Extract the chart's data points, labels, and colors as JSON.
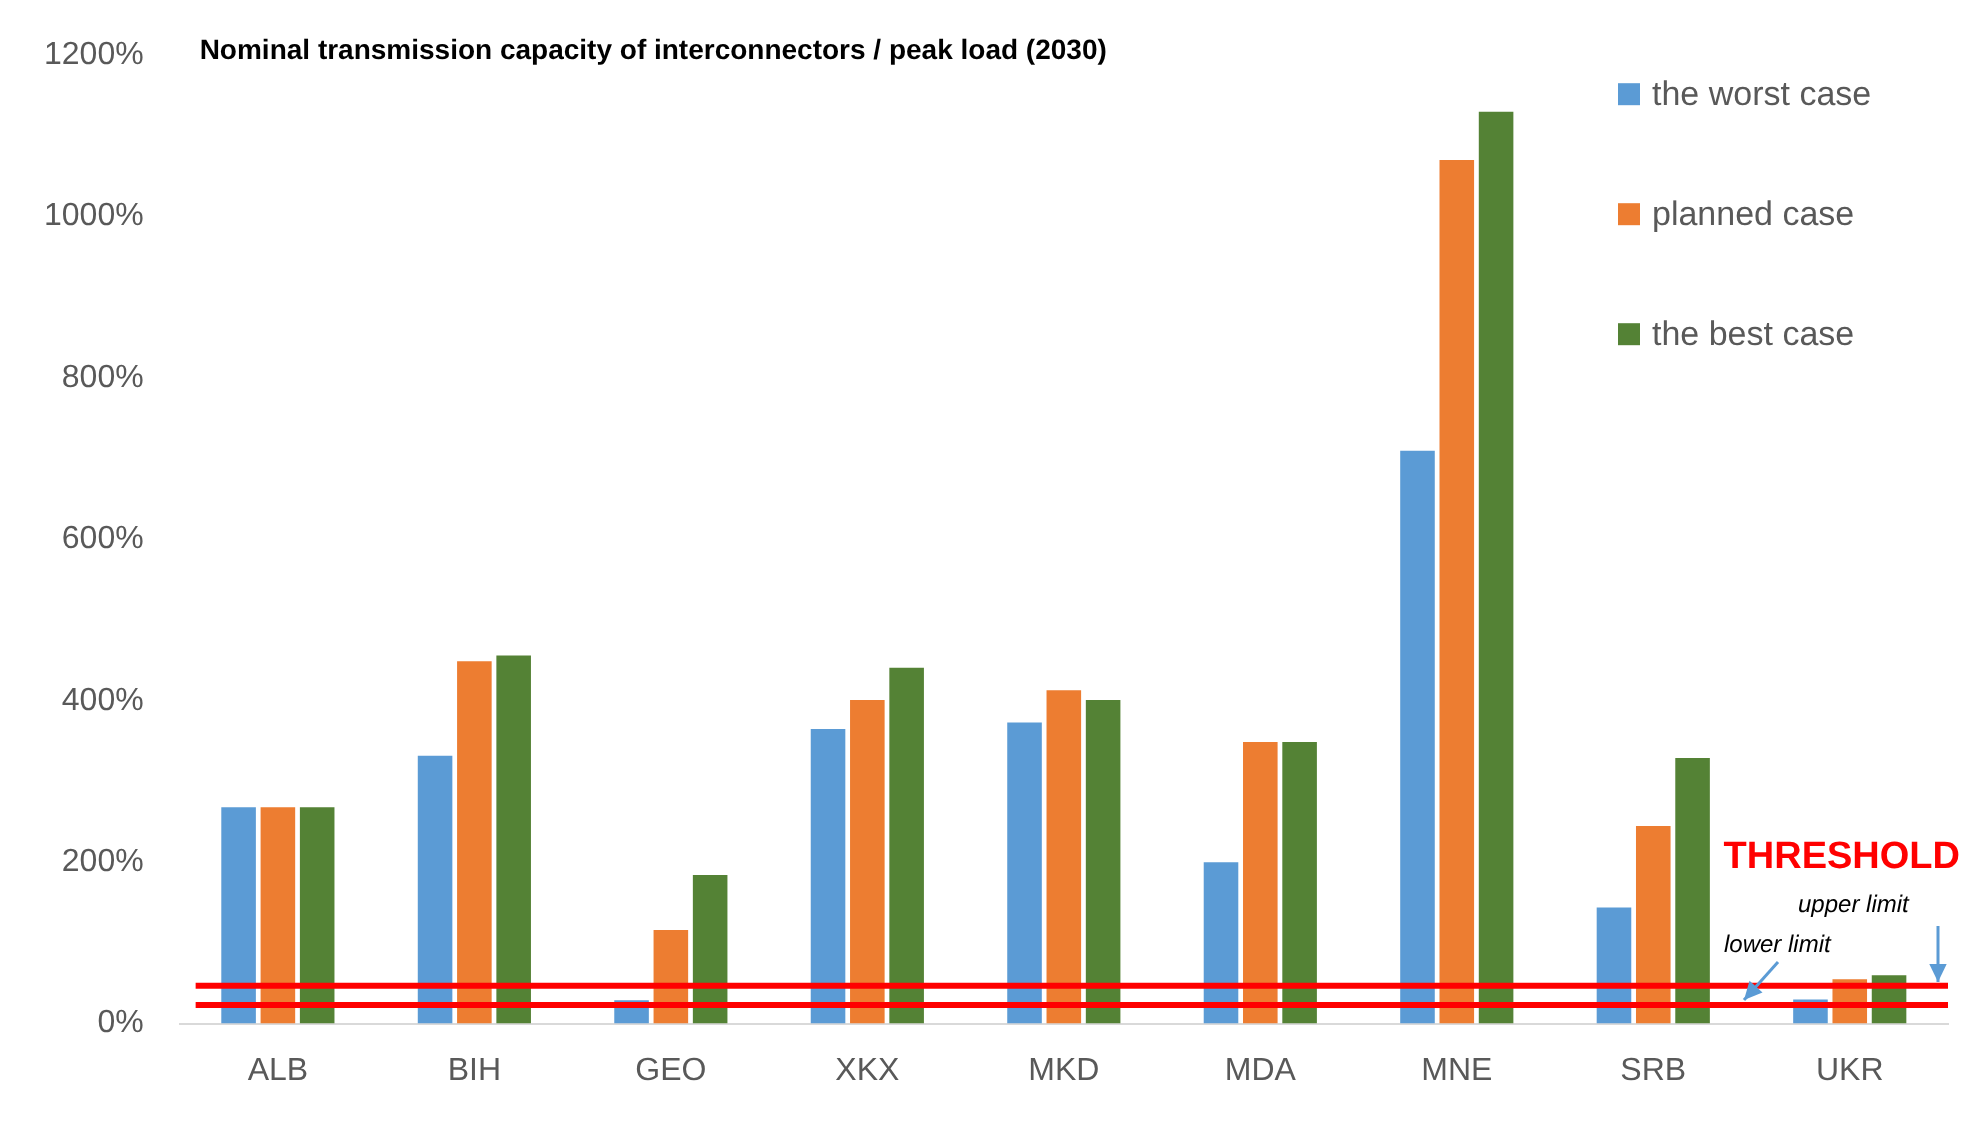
{
  "chart_data": {
    "type": "bar",
    "title": "Nominal transmission capacity of interconnectors / peak load (2030)",
    "categories": [
      "ALB",
      "BIH",
      "GEO",
      "XKX",
      "MKD",
      "MDA",
      "MNE",
      "SRB",
      "UKR"
    ],
    "series": [
      {
        "name": "the worst case",
        "color": "#5b9bd5",
        "values": [
          268,
          332,
          29,
          365,
          373,
          200,
          710,
          144,
          30
        ]
      },
      {
        "name": "planned case",
        "color": "#ed7d31",
        "values": [
          268,
          449,
          116,
          401,
          413,
          349,
          1070,
          245,
          55
        ]
      },
      {
        "name": "the best case",
        "color": "#548235",
        "values": [
          268,
          456,
          184,
          441,
          401,
          349,
          1130,
          329,
          60
        ]
      }
    ],
    "ylim": [
      0,
      1200
    ],
    "yticks": [
      {
        "value": 0,
        "label": "0%"
      },
      {
        "value": 200,
        "label": "200%"
      },
      {
        "value": 400,
        "label": "400%"
      },
      {
        "value": 600,
        "label": "600%"
      },
      {
        "value": 800,
        "label": "800%"
      },
      {
        "value": 1000,
        "label": "1000%"
      },
      {
        "value": 1200,
        "label": "1200%"
      }
    ],
    "grid": false,
    "legend": "top right",
    "ref_lines": [
      {
        "axis": "y",
        "value": 47,
        "label": "upper limit",
        "color": "#ff0000"
      },
      {
        "axis": "y",
        "value": 23,
        "label": "lower limit",
        "color": "#ff0000"
      }
    ],
    "annotations": [
      {
        "text": "THRESHOLD",
        "y": 47
      }
    ]
  }
}
